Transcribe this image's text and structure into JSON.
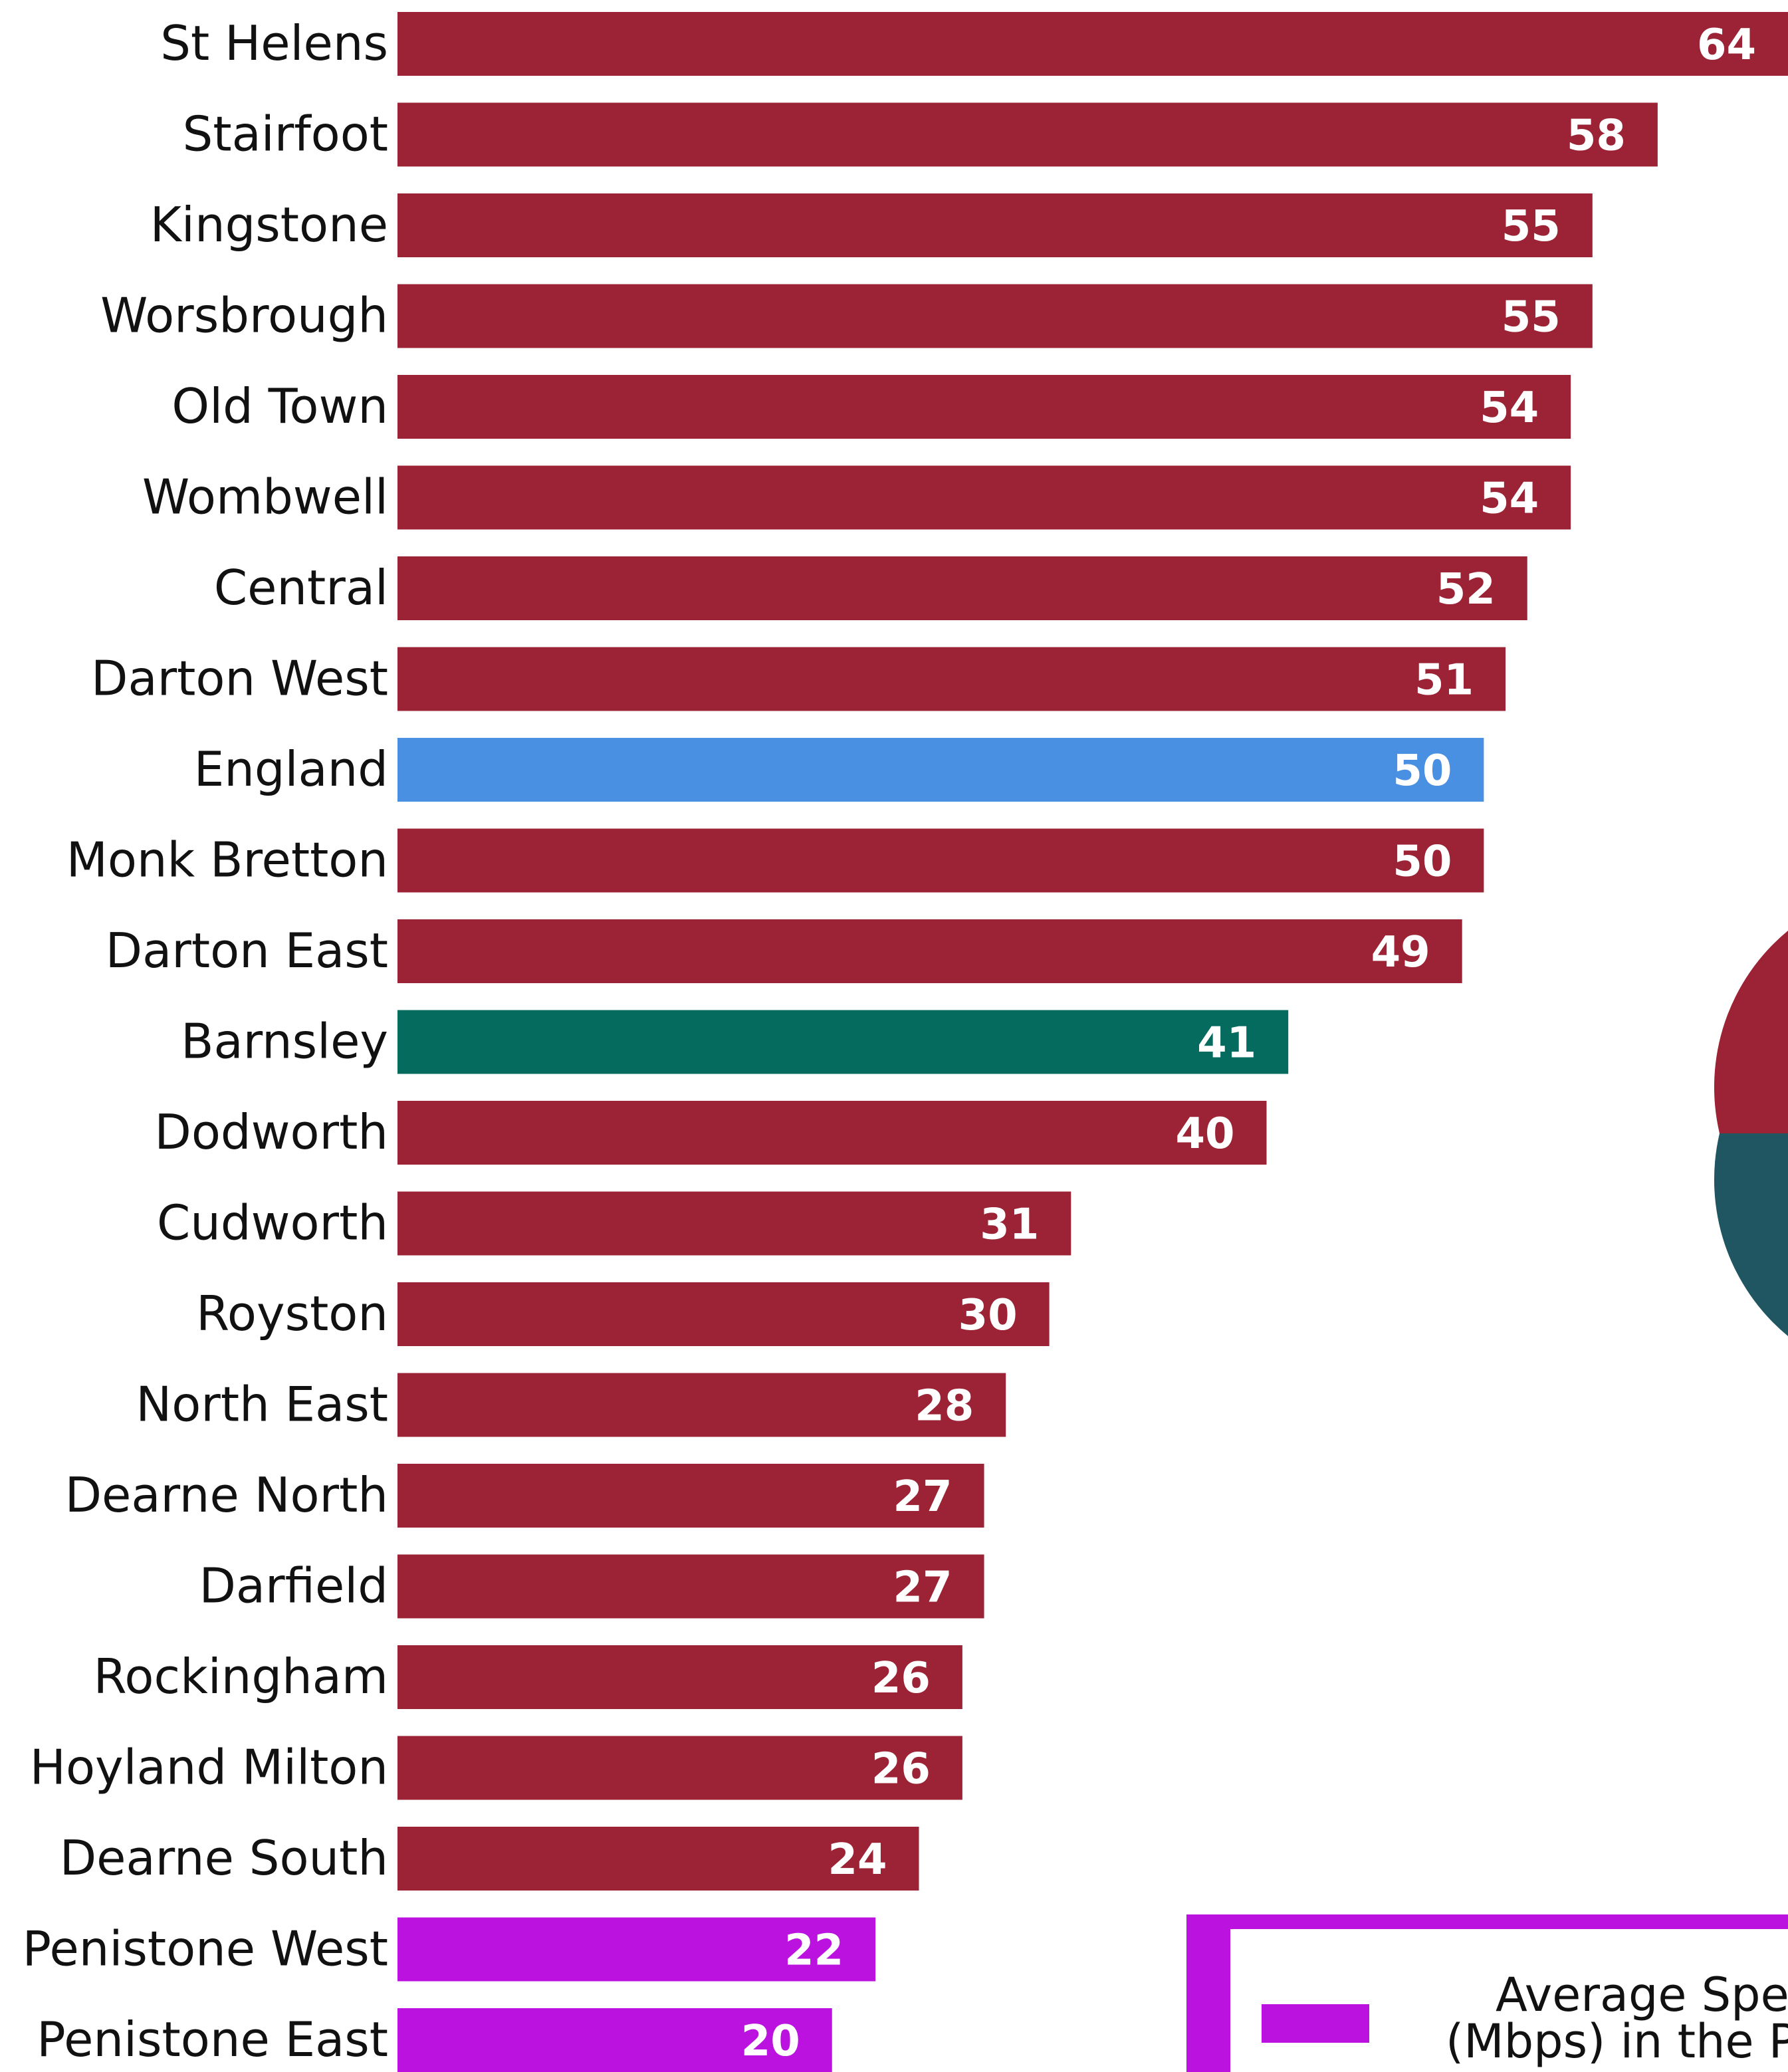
{
  "chart_data": {
    "type": "bar",
    "orientation": "horizontal",
    "categories": [
      "St Helens",
      "Stairfoot",
      "Kingstone",
      "Worsbrough",
      "Old Town",
      "Wombwell",
      "Central",
      "Darton West",
      "England",
      "Monk Bretton",
      "Darton East",
      "Barnsley",
      "Dodworth",
      "Cudworth",
      "Royston",
      "North East",
      "Dearne North",
      "Darfield",
      "Rockingham",
      "Hoyland Milton",
      "Dearne South",
      "Penistone West",
      "Penistone East"
    ],
    "values": [
      64,
      58,
      55,
      55,
      54,
      54,
      52,
      51,
      50,
      50,
      49,
      41,
      40,
      31,
      30,
      28,
      27,
      27,
      26,
      26,
      24,
      22,
      20
    ],
    "bar_colors": [
      "#9b2335",
      "#9b2335",
      "#9b2335",
      "#9b2335",
      "#9b2335",
      "#9b2335",
      "#9b2335",
      "#9b2335",
      "#4a90e2",
      "#9b2335",
      "#9b2335",
      "#046b5e",
      "#9b2335",
      "#9b2335",
      "#9b2335",
      "#9b2335",
      "#9b2335",
      "#9b2335",
      "#9b2335",
      "#9b2335",
      "#9b2335",
      "#bb12e0",
      "#bb12e0"
    ],
    "xlim": [
      0,
      64
    ],
    "grid": false,
    "legend": {
      "position": "bottom-right",
      "entries": [
        {
          "label_line1": "Average Spe",
          "label_line2": "(Mbps) in the P",
          "color": "#bb12e0"
        }
      ]
    },
    "pie_partial": {
      "colors": [
        "#9b2335",
        "#1f5662"
      ]
    }
  }
}
